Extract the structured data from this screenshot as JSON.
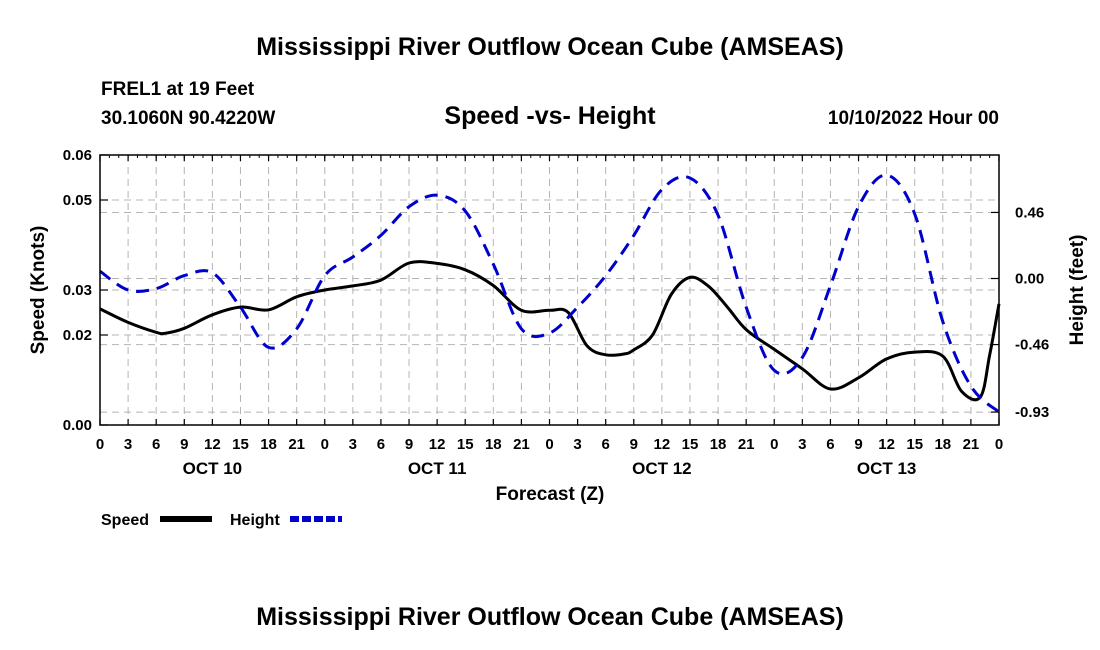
{
  "page": {
    "title": "Mississippi River Outflow Ocean Cube (AMSEAS)",
    "station": "FREL1 at 19 Feet",
    "coords": "30.1060N  90.4220W",
    "subtitle": "Speed -vs- Height",
    "datetime": "10/10/2022 Hour 00",
    "bottom_title": "Mississippi River Outflow Ocean Cube (AMSEAS)"
  },
  "chart_data": {
    "type": "line",
    "title": "Speed -vs- Height",
    "xlabel": "Forecast (Z)",
    "ylabel": "Speed (Knots)",
    "y2label": "Height (feet)",
    "xlim": [
      0,
      96
    ],
    "ylim": [
      0.0,
      0.06
    ],
    "y2lim": [
      -1.02,
      0.86
    ],
    "grid": true,
    "x_tick_values": [
      0,
      3,
      6,
      9,
      12,
      15,
      18,
      21,
      24,
      27,
      30,
      33,
      36,
      39,
      42,
      45,
      48,
      51,
      54,
      57,
      60,
      63,
      66,
      69,
      72,
      75,
      78,
      81,
      84,
      87,
      90,
      93,
      96
    ],
    "x_tick_labels": [
      "0",
      "3",
      "6",
      "9",
      "12",
      "15",
      "18",
      "21",
      "0",
      "3",
      "6",
      "9",
      "12",
      "15",
      "18",
      "21",
      "0",
      "3",
      "6",
      "9",
      "12",
      "15",
      "18",
      "21",
      "0",
      "3",
      "6",
      "9",
      "12",
      "15",
      "18",
      "21",
      "0"
    ],
    "day_labels": [
      {
        "text": "OCT 10",
        "hour": 12
      },
      {
        "text": "OCT 11",
        "hour": 36
      },
      {
        "text": "OCT 12",
        "hour": 60
      },
      {
        "text": "OCT 13",
        "hour": 84
      }
    ],
    "y_ticks": [
      {
        "value": 0.0,
        "label": "0.00"
      },
      {
        "value": 0.02,
        "label": "0.02"
      },
      {
        "value": 0.03,
        "label": "0.03"
      },
      {
        "value": 0.05,
        "label": "0.05"
      },
      {
        "value": 0.06,
        "label": "0.06"
      }
    ],
    "y2_ticks": [
      {
        "value": 0.46,
        "label": "0.46"
      },
      {
        "value": 0.0,
        "label": "0.00"
      },
      {
        "value": -0.46,
        "label": "-0.46"
      },
      {
        "value": -0.93,
        "label": "-0.93"
      }
    ],
    "series": [
      {
        "name": "Speed",
        "axis": "left",
        "color": "#000000",
        "dash": "solid",
        "x": [
          0,
          3,
          6,
          7,
          9,
          12,
          15,
          18,
          21,
          24,
          27,
          30,
          33,
          36,
          39,
          42,
          45,
          48,
          50,
          52,
          54,
          56,
          57,
          59,
          61,
          63,
          65,
          67,
          69,
          72,
          75,
          78,
          81,
          84,
          87,
          90,
          92,
          94,
          95,
          96
        ],
        "y": [
          0.0258,
          0.0228,
          0.0206,
          0.0204,
          0.0215,
          0.0245,
          0.0262,
          0.0256,
          0.0285,
          0.03,
          0.0309,
          0.0322,
          0.036,
          0.0359,
          0.0345,
          0.031,
          0.0255,
          0.0255,
          0.025,
          0.0176,
          0.0156,
          0.0158,
          0.0167,
          0.02,
          0.029,
          0.0328,
          0.0308,
          0.0262,
          0.0212,
          0.0168,
          0.0125,
          0.008,
          0.0105,
          0.0147,
          0.0162,
          0.0153,
          0.0075,
          0.0062,
          0.0155,
          0.0269
        ]
      },
      {
        "name": "Height",
        "axis": "right",
        "color": "#0000cc",
        "dash": "dashed",
        "x": [
          0,
          3,
          6,
          9,
          12,
          15,
          18,
          21,
          24,
          27,
          30,
          33,
          36,
          39,
          42,
          45,
          48,
          51,
          54,
          57,
          60,
          63,
          66,
          69,
          72,
          75,
          78,
          81,
          84,
          87,
          90,
          93,
          96
        ],
        "y": [
          0.05,
          -0.08,
          -0.07,
          0.02,
          0.04,
          -0.2,
          -0.48,
          -0.35,
          0.02,
          0.15,
          0.3,
          0.5,
          0.58,
          0.47,
          0.1,
          -0.35,
          -0.38,
          -0.2,
          0.02,
          0.3,
          0.62,
          0.7,
          0.44,
          -0.2,
          -0.64,
          -0.55,
          -0.05,
          0.5,
          0.72,
          0.45,
          -0.3,
          -0.75,
          -0.93
        ]
      }
    ],
    "legend": [
      {
        "label": "Speed",
        "color": "#000000",
        "dash": "solid"
      },
      {
        "label": "Height",
        "color": "#0000cc",
        "dash": "dashed"
      }
    ]
  }
}
